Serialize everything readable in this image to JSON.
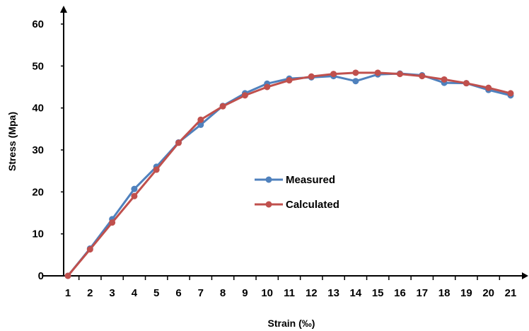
{
  "chart_data": {
    "type": "line",
    "title": "",
    "xlabel": "Strain (‰)",
    "ylabel": "Stress (Mpa)",
    "ylim": [
      0,
      60
    ],
    "yticks": [
      0,
      10,
      20,
      30,
      40,
      50,
      60
    ],
    "x": [
      1,
      2,
      3,
      4,
      5,
      6,
      7,
      8,
      9,
      10,
      11,
      12,
      13,
      14,
      15,
      16,
      17,
      18,
      19,
      20,
      21
    ],
    "grid": false,
    "legend_position": "center",
    "series": [
      {
        "name": "Measured",
        "color": "#4f81bd",
        "values": [
          0,
          6.5,
          13.5,
          20.7,
          26,
          31.8,
          36,
          40.5,
          43.5,
          45.8,
          47,
          47.3,
          47.6,
          46.4,
          48,
          48.2,
          47.8,
          46,
          45.9,
          44.3,
          43
        ]
      },
      {
        "name": "Calculated",
        "color": "#c0504d",
        "values": [
          0,
          6.3,
          12.7,
          19,
          25.3,
          31.7,
          37.2,
          40.4,
          43,
          45,
          46.6,
          47.5,
          48.1,
          48.4,
          48.4,
          48.1,
          47.6,
          46.8,
          45.9,
          44.8,
          43.5
        ]
      }
    ]
  }
}
